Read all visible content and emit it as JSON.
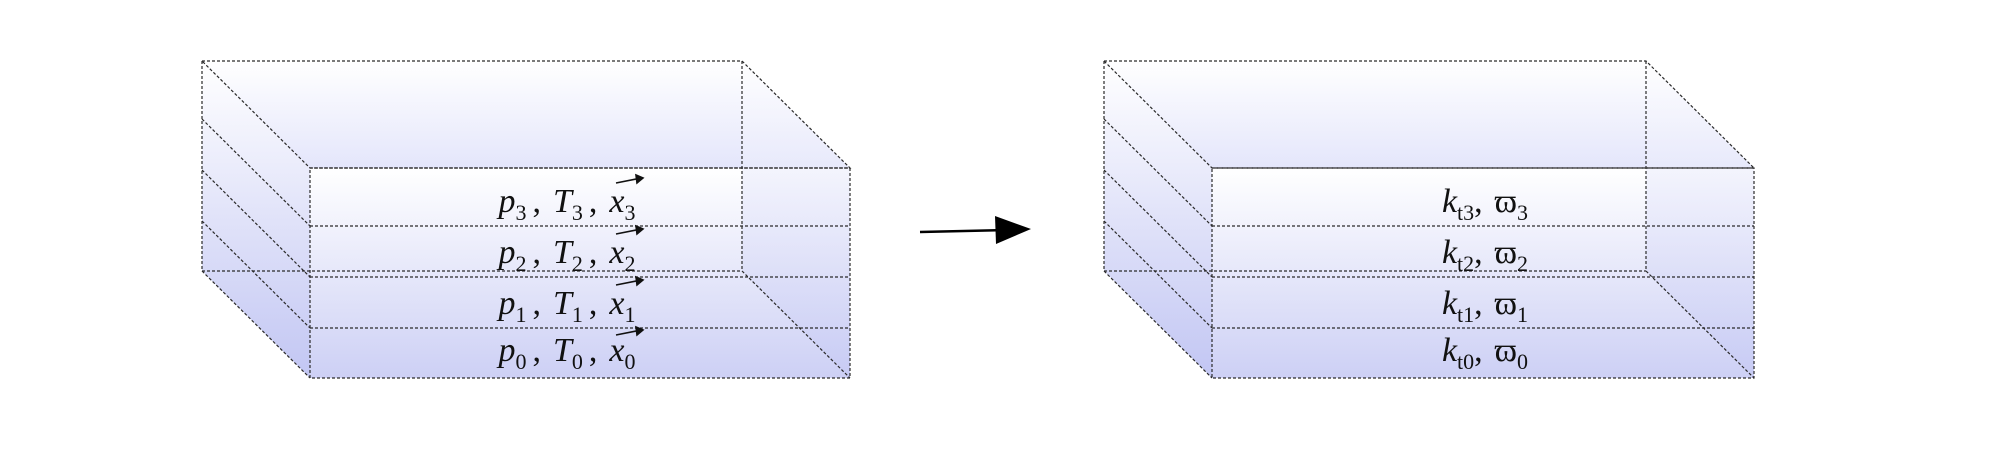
{
  "left_block": {
    "layers": [
      {
        "p": "p",
        "p_sub": "0",
        "T": "T",
        "T_sub": "0",
        "x": "x",
        "x_sub": "0"
      },
      {
        "p": "p",
        "p_sub": "1",
        "T": "T",
        "T_sub": "1",
        "x": "x",
        "x_sub": "1"
      },
      {
        "p": "p",
        "p_sub": "2",
        "T": "T",
        "T_sub": "2",
        "x": "x",
        "x_sub": "2"
      },
      {
        "p": "p",
        "p_sub": "3",
        "T": "T",
        "T_sub": "3",
        "x": "x",
        "x_sub": "3"
      }
    ],
    "separator": ","
  },
  "right_block": {
    "layers": [
      {
        "k": "k",
        "k_sub": "t0",
        "w": "ϖ",
        "w_sub": "0"
      },
      {
        "k": "k",
        "k_sub": "t1",
        "w": "ϖ",
        "w_sub": "1"
      },
      {
        "k": "k",
        "k_sub": "t2",
        "w": "ϖ",
        "w_sub": "2"
      },
      {
        "k": "k",
        "k_sub": "t3",
        "w": "ϖ",
        "w_sub": "3"
      }
    ],
    "separator": ","
  },
  "colors": {
    "fill_top": "#ffffff",
    "fill_bottom": "#cdd0f5",
    "edge": "#2a2a2a",
    "arrow": "#000000"
  }
}
